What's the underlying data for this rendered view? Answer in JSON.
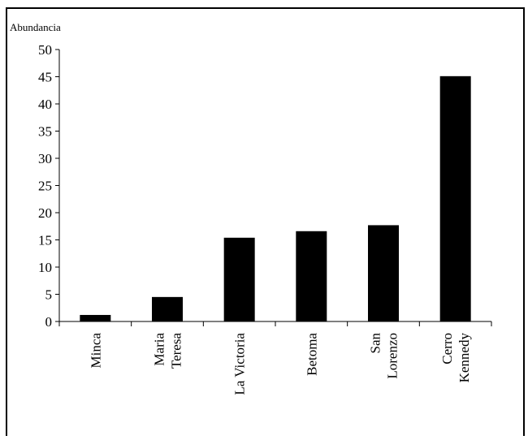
{
  "chart_data": {
    "type": "bar",
    "ylabel": "Abundancia",
    "xlabel": "",
    "title": "",
    "ylim": [
      0,
      50
    ],
    "yticks": [
      0,
      5,
      10,
      15,
      20,
      25,
      30,
      35,
      40,
      45,
      50
    ],
    "grid": false,
    "legend": "none",
    "categories": [
      [
        "Minca"
      ],
      [
        "Maria",
        "Teresa"
      ],
      [
        "La Victoria"
      ],
      [
        "Betoma"
      ],
      [
        "San",
        "Lorenzo"
      ],
      [
        "Cerro",
        "Kennedy"
      ]
    ],
    "values": [
      1.2,
      4.5,
      15.4,
      16.6,
      17.7,
      45.1
    ],
    "bar_color": "#000000"
  }
}
